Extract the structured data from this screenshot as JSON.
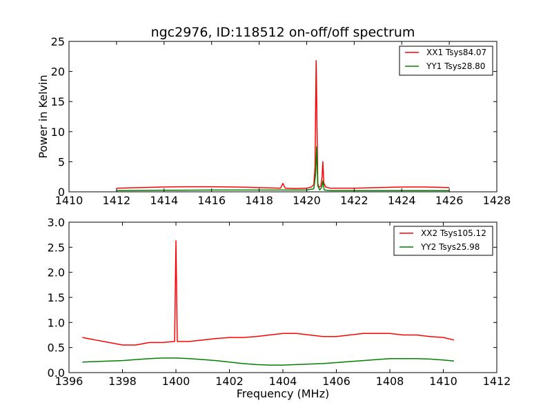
{
  "figure": {
    "title": "ngc2976, ID:118512 on-off/off spectrum"
  },
  "chart_data": [
    {
      "type": "line",
      "panel": "top",
      "title": "ngc2976, ID:118512 on-off/off spectrum",
      "xlabel": "",
      "ylabel": "Power in Kelvin",
      "xlim": [
        1410,
        1428
      ],
      "ylim": [
        0,
        25
      ],
      "xticks": [
        1410,
        1412,
        1414,
        1416,
        1418,
        1420,
        1422,
        1424,
        1426,
        1428
      ],
      "yticks": [
        0,
        5,
        10,
        15,
        20,
        25
      ],
      "grid": false,
      "legend_position": "top-right",
      "series": [
        {
          "name": "XX1 Tsys84.07",
          "color": "#ff0000",
          "x": [
            1412.0,
            1413.0,
            1414.0,
            1415.0,
            1416.0,
            1417.0,
            1418.0,
            1418.9,
            1419.0,
            1419.1,
            1419.5,
            1420.0,
            1420.2,
            1420.3,
            1420.35,
            1420.4,
            1420.43,
            1420.47,
            1420.5,
            1420.55,
            1420.6,
            1420.65,
            1420.68,
            1420.72,
            1420.8,
            1421.0,
            1422.0,
            1423.0,
            1424.0,
            1425.0,
            1426.0
          ],
          "y": [
            0.6,
            0.7,
            0.8,
            0.85,
            0.85,
            0.8,
            0.7,
            0.6,
            1.4,
            0.6,
            0.55,
            0.6,
            0.8,
            1.2,
            4.0,
            21.8,
            12.0,
            1.5,
            0.9,
            0.8,
            1.0,
            2.5,
            5.0,
            1.5,
            0.8,
            0.6,
            0.6,
            0.7,
            0.8,
            0.8,
            0.7
          ]
        },
        {
          "name": "YY1 Tsys28.80",
          "color": "#008000",
          "x": [
            1412.0,
            1414.0,
            1416.0,
            1418.0,
            1419.0,
            1420.0,
            1420.3,
            1420.38,
            1420.42,
            1420.47,
            1420.55,
            1420.64,
            1420.68,
            1420.74,
            1421.0,
            1422.0,
            1424.0,
            1426.0
          ],
          "y": [
            0.2,
            0.25,
            0.3,
            0.3,
            0.3,
            0.3,
            0.5,
            3.0,
            7.5,
            1.0,
            0.3,
            0.8,
            1.8,
            0.3,
            0.2,
            0.2,
            0.2,
            0.2
          ]
        }
      ]
    },
    {
      "type": "line",
      "panel": "bottom",
      "title": "",
      "xlabel": "Frequency (MHz)",
      "ylabel": "",
      "xlim": [
        1396,
        1412
      ],
      "ylim": [
        0.0,
        3.0
      ],
      "xticks": [
        1396,
        1398,
        1400,
        1402,
        1404,
        1406,
        1408,
        1410,
        1412
      ],
      "yticks": [
        0.0,
        0.5,
        1.0,
        1.5,
        2.0,
        2.5,
        3.0
      ],
      "grid": false,
      "legend_position": "top-right",
      "series": [
        {
          "name": "XX2 Tsys105.12",
          "color": "#ff0000",
          "x": [
            1396.5,
            1397.0,
            1397.5,
            1398.0,
            1398.5,
            1399.0,
            1399.5,
            1399.95,
            1400.0,
            1400.05,
            1400.5,
            1401.0,
            1401.5,
            1402.0,
            1402.5,
            1403.0,
            1403.5,
            1404.0,
            1404.5,
            1405.0,
            1405.5,
            1406.0,
            1406.5,
            1407.0,
            1407.5,
            1408.0,
            1408.5,
            1409.0,
            1409.5,
            1410.0,
            1410.4
          ],
          "y": [
            0.7,
            0.65,
            0.6,
            0.55,
            0.55,
            0.6,
            0.6,
            0.62,
            2.63,
            0.62,
            0.62,
            0.65,
            0.68,
            0.7,
            0.7,
            0.72,
            0.75,
            0.78,
            0.78,
            0.75,
            0.72,
            0.72,
            0.75,
            0.78,
            0.78,
            0.78,
            0.75,
            0.75,
            0.72,
            0.7,
            0.65
          ]
        },
        {
          "name": "YY2 Tsys25.98",
          "color": "#008000",
          "x": [
            1396.5,
            1397.0,
            1397.5,
            1398.0,
            1398.5,
            1399.0,
            1399.5,
            1400.0,
            1400.5,
            1401.0,
            1401.5,
            1402.0,
            1402.5,
            1403.0,
            1403.5,
            1404.0,
            1404.5,
            1405.0,
            1405.5,
            1406.0,
            1406.5,
            1407.0,
            1407.5,
            1408.0,
            1408.5,
            1409.0,
            1409.5,
            1410.0,
            1410.4
          ],
          "y": [
            0.21,
            0.22,
            0.23,
            0.24,
            0.26,
            0.28,
            0.29,
            0.29,
            0.28,
            0.26,
            0.24,
            0.21,
            0.18,
            0.16,
            0.15,
            0.15,
            0.16,
            0.17,
            0.18,
            0.2,
            0.22,
            0.24,
            0.26,
            0.28,
            0.28,
            0.28,
            0.27,
            0.25,
            0.23
          ]
        }
      ]
    }
  ]
}
